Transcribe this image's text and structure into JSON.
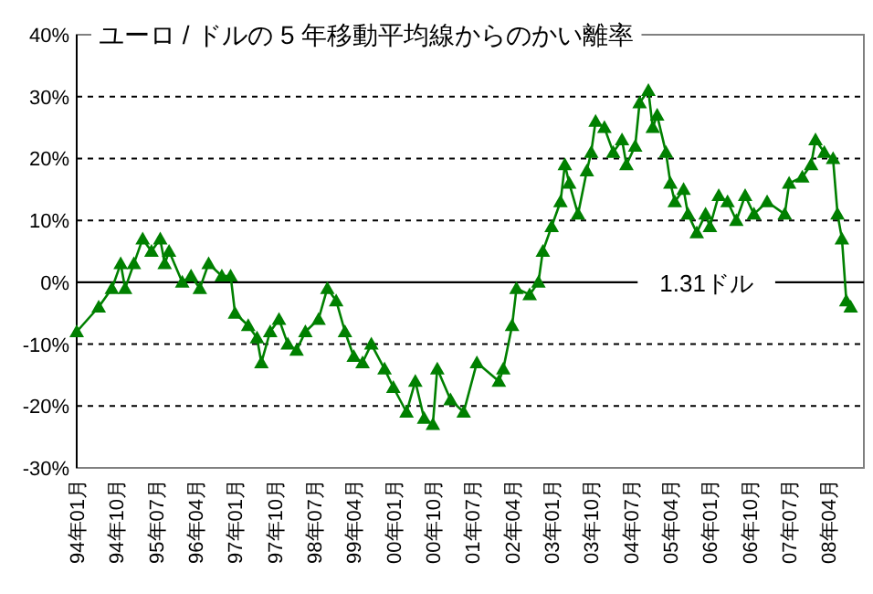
{
  "chart_data": {
    "type": "line",
    "title": "ユーロ / ドルの 5 年移動平均線からのかい離率",
    "x": [
      "1994-01",
      "1994-06",
      "1994-09",
      "1994-11",
      "1994-12",
      "1995-02",
      "1995-04",
      "1995-06",
      "1995-08",
      "1995-09",
      "1995-10",
      "1996-01",
      "1996-03",
      "1996-05",
      "1996-07",
      "1996-10",
      "1996-12",
      "1997-01",
      "1997-04",
      "1997-06",
      "1997-07",
      "1997-09",
      "1997-11",
      "1998-01",
      "1998-03",
      "1998-05",
      "1998-08",
      "1998-10",
      "1998-12",
      "1999-02",
      "1999-04",
      "1999-06",
      "1999-08",
      "1999-11",
      "2000-01",
      "2000-04",
      "2000-06",
      "2000-08",
      "2000-10",
      "2000-11",
      "2001-02",
      "2001-05",
      "2001-08",
      "2002-01",
      "2002-02",
      "2002-04",
      "2002-05",
      "2002-08",
      "2002-10",
      "2002-11",
      "2003-01",
      "2003-03",
      "2003-04",
      "2003-05",
      "2003-07",
      "2003-09",
      "2003-10",
      "2003-11",
      "2004-01",
      "2004-03",
      "2004-05",
      "2004-06",
      "2004-08",
      "2004-09",
      "2004-11",
      "2004-12",
      "2005-01",
      "2005-03",
      "2005-04",
      "2005-05",
      "2005-07",
      "2005-08",
      "2005-10",
      "2005-12",
      "2006-01",
      "2006-03",
      "2006-05",
      "2006-07",
      "2006-09",
      "2006-11",
      "2007-02",
      "2007-06",
      "2007-07",
      "2007-10",
      "2007-12",
      "2008-01",
      "2008-03",
      "2008-05",
      "2008-06",
      "2008-07",
      "2008-08",
      "2008-09"
    ],
    "series": [
      {
        "color": "#008000",
        "values": [
          -8,
          -4,
          -1,
          3,
          -1,
          3,
          7,
          5,
          7,
          3,
          5,
          0,
          1,
          -1,
          3,
          1,
          1,
          -5,
          -7,
          -9,
          -13,
          -8,
          -6,
          -10,
          -11,
          -8,
          -6,
          -1,
          -3,
          -8,
          -12,
          -13,
          -10,
          -14,
          -17,
          -21,
          -16,
          -22,
          -23,
          -14,
          -19,
          -21,
          -13,
          -16,
          -14,
          -7,
          -1,
          -2,
          0,
          5,
          9,
          13,
          19,
          16,
          11,
          18,
          21,
          26,
          25,
          21,
          23,
          19,
          22,
          29,
          31,
          25,
          27,
          21,
          16,
          13,
          15,
          11,
          8,
          11,
          9,
          14,
          13,
          10,
          14,
          11,
          13,
          11,
          16,
          17,
          19,
          23,
          21,
          20,
          11,
          7,
          -3,
          -4
        ]
      }
    ],
    "xlim": [
      "1994-01",
      "2008-12"
    ],
    "xticks": [
      {
        "value": "1994-01",
        "label": "94年01月"
      },
      {
        "value": "1994-10",
        "label": "94年10月"
      },
      {
        "value": "1995-07",
        "label": "95年07月"
      },
      {
        "value": "1996-04",
        "label": "96年04月"
      },
      {
        "value": "1997-01",
        "label": "97年01月"
      },
      {
        "value": "1997-10",
        "label": "97年10月"
      },
      {
        "value": "1998-07",
        "label": "98年07月"
      },
      {
        "value": "1999-04",
        "label": "99年04月"
      },
      {
        "value": "2000-01",
        "label": "00年01月"
      },
      {
        "value": "2000-10",
        "label": "00年10月"
      },
      {
        "value": "2001-07",
        "label": "01年07月"
      },
      {
        "value": "2002-04",
        "label": "02年04月"
      },
      {
        "value": "2003-01",
        "label": "03年01月"
      },
      {
        "value": "2003-10",
        "label": "03年10月"
      },
      {
        "value": "2004-07",
        "label": "04年07月"
      },
      {
        "value": "2005-04",
        "label": "05年04月"
      },
      {
        "value": "2006-01",
        "label": "06年01月"
      },
      {
        "value": "2006-10",
        "label": "06年10月"
      },
      {
        "value": "2007-07",
        "label": "07年07月"
      },
      {
        "value": "2008-04",
        "label": "08年04月"
      }
    ],
    "ylim": [
      -30,
      40
    ],
    "yticks": [
      {
        "value": -30,
        "label": "-30%"
      },
      {
        "value": -20,
        "label": "-20%"
      },
      {
        "value": -10,
        "label": "-10%"
      },
      {
        "value": 0,
        "label": "0%"
      },
      {
        "value": 10,
        "label": "10%"
      },
      {
        "value": 20,
        "label": "20%"
      },
      {
        "value": 30,
        "label": "30%"
      },
      {
        "value": 40,
        "label": "40%"
      }
    ],
    "ref_lines": [
      {
        "axis": "y",
        "value": 0,
        "label": "1.31ドル",
        "color": "#000000",
        "line_style": "solid"
      }
    ],
    "grid": "y",
    "marker": "triangle",
    "line_style": "solid"
  }
}
